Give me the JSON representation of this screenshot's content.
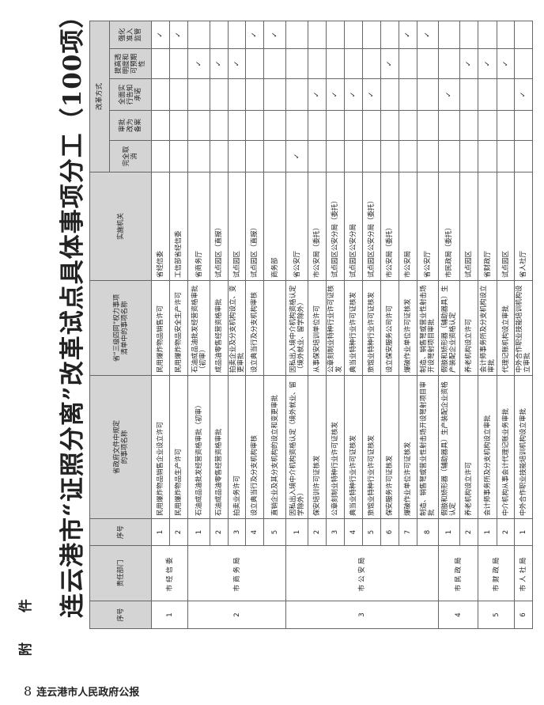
{
  "annex_label": "附 件",
  "title": "连云港市“证照分离”改革试点具体事项分工（100项）",
  "headers": {
    "no": "序号",
    "department": "责任部门",
    "item_no": "序号",
    "provincial_doc_name": "省政府文件中规定的事项名称",
    "power_list_name": "省“三级四同”权力事项清单中的事项名称",
    "implementing_body": "实施机关",
    "reform_mode": "改革方式",
    "modes": [
      "完全取消",
      "审批改为备案",
      "全面实行告知承诺",
      "提高透明度和可预期性",
      "强化准入监管"
    ]
  },
  "check_mark": "✓",
  "departments": [
    {
      "no": "1",
      "name": "市经信委",
      "items": [
        {
          "no": "1",
          "doc_name": "民用爆炸物品销售企业设立许可",
          "list_name": "民用爆炸物品销售许可",
          "body": "省经信委",
          "mode": 4
        },
        {
          "no": "2",
          "doc_name": "民用爆炸物品生产许可",
          "list_name": "民用爆炸物品安全生产许可",
          "body": "工信部省经信委",
          "mode": 4
        }
      ]
    },
    {
      "no": "2",
      "name": "市商务局",
      "items": [
        {
          "no": "1",
          "doc_name": "石油成品油批发经营资格审批（初审）",
          "list_name": "石油成品油批发经营资格审批（初审）",
          "body": "省商务厅",
          "mode": 3
        },
        {
          "no": "2",
          "doc_name": "石油成品油零售经营资格审批",
          "list_name": "成品油零售经营资格审批",
          "body": "试点园区（直报）",
          "mode": 3
        },
        {
          "no": "3",
          "doc_name": "拍卖业务许可",
          "list_name": "拍卖企业及分支机构设立、变更审批",
          "body": "试点园区",
          "mode": 3
        },
        {
          "no": "4",
          "doc_name": "设立典当行及分支机构审核",
          "list_name": "设立典当行及分支机构审核",
          "body": "试点园区（直报）",
          "mode": 4
        },
        {
          "no": "5",
          "doc_name": "直销企业及其分支机构的设立和变更审批",
          "list_name": "",
          "body": "商务部",
          "mode": 4
        }
      ]
    },
    {
      "no": "3",
      "name": "市公安局",
      "items": [
        {
          "no": "1",
          "doc_name": "因私出入境中介机构资格认定（境外就业、留学除外）",
          "list_name": "因私出入境中介机构资格认定（境外就业、留学除外）",
          "body": "省公安厅",
          "mode": 0
        },
        {
          "no": "2",
          "doc_name": "保安培训许可证核发",
          "list_name": "从事保安培训单位许可",
          "body": "市公安局（委托）",
          "mode": 2
        },
        {
          "no": "3",
          "doc_name": "公章刻制业特种行业许可证核发",
          "list_name": "公章刻制业特种行业许可证核发",
          "body": "试点园区公安分局（委托）",
          "mode": 2
        },
        {
          "no": "4",
          "doc_name": "典当业特种行业许可证核发",
          "list_name": "典当业特种行业许可证核发",
          "body": "试点园区公安分局",
          "mode": 2
        },
        {
          "no": "5",
          "doc_name": "旅馆业特种行业许可证核发",
          "list_name": "旅馆业特种行业许可证核发",
          "body": "试点园区公安分局（委托）",
          "mode": 2
        },
        {
          "no": "6",
          "doc_name": "保安服务许可证核发",
          "list_name": "设立保安服务公司许可",
          "body": "市公安局（委托）",
          "mode": 3
        },
        {
          "no": "7",
          "doc_name": "爆破作业单位许可证核发",
          "list_name": "爆破作业单位许可证核发",
          "body": "市公安局",
          "mode": 4
        },
        {
          "no": "8",
          "doc_name": "制造、销售弩或营业性射击场开设弩射项目审批",
          "list_name": "制造、销售弩或营业性射击场开设弩射项目审批",
          "body": "省公安厅",
          "mode": 4
        }
      ]
    },
    {
      "no": "4",
      "name": "市民政局",
      "items": [
        {
          "no": "1",
          "doc_name": "假肢和矫形器（辅助器具）生产装配企业资格认定",
          "list_name": "假肢和矫形器（辅助器具）生产装配企业资格认定",
          "body": "市民政局（委托）",
          "mode": 2
        },
        {
          "no": "2",
          "doc_name": "养老机构设立许可",
          "list_name": "养老机构设立许可",
          "body": "试点园区",
          "mode": 3
        }
      ]
    },
    {
      "no": "5",
      "name": "市财政局",
      "items": [
        {
          "no": "1",
          "doc_name": "会计师事务所及分支机构设立审批",
          "list_name": "会计师事务所及分支机构设立审批",
          "body": "省财政厅",
          "mode": 3
        },
        {
          "no": "2",
          "doc_name": "中介机构从事会计代理记账业务审批",
          "list_name": "代理记账机构设立审批",
          "body": "试点园区",
          "mode": 3
        }
      ]
    },
    {
      "no": "6",
      "name": "市人社局",
      "items": [
        {
          "no": "1",
          "doc_name": "中外合作职业技能培训机构设立审批",
          "list_name": "中外合作职业技能培训机构设立审批",
          "body": "省人社厅",
          "mode": 2
        }
      ]
    }
  ],
  "footer": {
    "page_number": "8",
    "publication": "连云港市人民政府公报"
  }
}
